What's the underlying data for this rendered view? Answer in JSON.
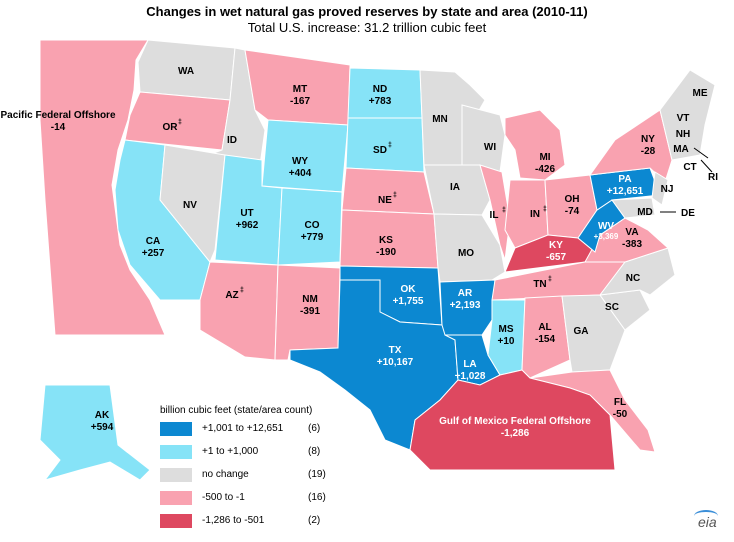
{
  "title": "Changes in wet natural gas proved reserves by state and area (2010-11)",
  "subtitle": "Total U.S. increase:  31.2 trillion cubic feet",
  "colors": {
    "dark_blue": "#0c88d1",
    "light_blue": "#86e3f7",
    "gray": "#dddddd",
    "pink": "#f9a2b0",
    "red": "#de4860"
  },
  "legend": {
    "title": "billion cubic feet (state/area count)",
    "items": [
      {
        "range": "+1,001 to +12,651",
        "count": "(6)",
        "color": "#0c88d1"
      },
      {
        "range": "+1 to +1,000",
        "count": "(8)",
        "color": "#86e3f7"
      },
      {
        "range": "no change",
        "count": "(19)",
        "color": "#dddddd"
      },
      {
        "range": "-500 to -1",
        "count": "(16)",
        "color": "#f9a2b0"
      },
      {
        "range": "-1,286 to -501",
        "count": "(2)",
        "color": "#de4860"
      }
    ]
  },
  "labels": {
    "pacific": {
      "name": "Pacific Federal Offshore",
      "value": "-14"
    },
    "wa": "WA",
    "or": "OR",
    "ca": {
      "name": "CA",
      "value": "+257"
    },
    "id": "ID",
    "nv": "NV",
    "mt": {
      "name": "MT",
      "value": "-167"
    },
    "wy": {
      "name": "WY",
      "value": "+404"
    },
    "ut": {
      "name": "UT",
      "value": "+962"
    },
    "az": "AZ",
    "co": {
      "name": "CO",
      "value": "+779"
    },
    "nm": {
      "name": "NM",
      "value": "-391"
    },
    "nd": {
      "name": "ND",
      "value": "+783"
    },
    "sd": "SD",
    "ne": "NE",
    "ks": {
      "name": "KS",
      "value": "-190"
    },
    "ok": {
      "name": "OK",
      "value": "+1,755"
    },
    "tx": {
      "name": "TX",
      "value": "+10,167"
    },
    "mn": "MN",
    "ia": "IA",
    "mo": "MO",
    "ar": {
      "name": "AR",
      "value": "+2,193"
    },
    "la": {
      "name": "LA",
      "value": "+1,028"
    },
    "wi": "WI",
    "il": "IL",
    "ms": {
      "name": "MS",
      "value": "+10"
    },
    "mi": {
      "name": "MI",
      "value": "-426"
    },
    "in": "IN",
    "ky": {
      "name": "KY",
      "value": "-657"
    },
    "tn": "TN",
    "al": {
      "name": "AL",
      "value": "-154"
    },
    "oh": {
      "name": "OH",
      "value": "-74"
    },
    "wv": {
      "name": "WV",
      "value": "+3,369"
    },
    "pa": {
      "name": "PA",
      "value": "+12,651"
    },
    "ny": {
      "name": "NY",
      "value": "-28"
    },
    "va": {
      "name": "VA",
      "value": "-383"
    },
    "nc": "NC",
    "sc": "SC",
    "ga": "GA",
    "fl": {
      "name": "FL",
      "value": "-50"
    },
    "me": "ME",
    "vt": "VT",
    "nh": "NH",
    "ma": "MA",
    "ct": "CT",
    "ri": "RI",
    "nj": "NJ",
    "md": "MD",
    "de": "DE",
    "gulf": {
      "name": "Gulf of Mexico Federal Offshore",
      "value": "-1,286"
    },
    "ak": {
      "name": "AK",
      "value": "+594"
    }
  },
  "footnote_mark": "‡",
  "logo": "eia"
}
